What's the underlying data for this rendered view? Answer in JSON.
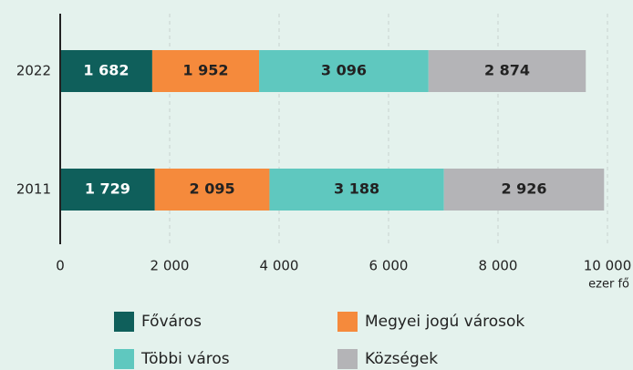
{
  "chart_data": {
    "type": "stacked_barh",
    "categories": [
      "2022",
      "2011"
    ],
    "series": [
      {
        "name": "Főváros",
        "color": "#0f5f5b",
        "values": [
          1682,
          1729
        ],
        "value_labels": [
          "1 682",
          "1 729"
        ]
      },
      {
        "name": "Megyei jogú városok",
        "color": "#f58a3c",
        "values": [
          1952,
          2095
        ],
        "value_labels": [
          "1 952",
          "2 095"
        ]
      },
      {
        "name": "Többi város",
        "color": "#5fc8bf",
        "values": [
          3096,
          3188
        ],
        "value_labels": [
          "3 096",
          "3 188"
        ]
      },
      {
        "name": "Községek",
        "color": "#b4b4b7",
        "values": [
          2874,
          2926
        ],
        "value_labels": [
          "2 874",
          "2 926"
        ]
      }
    ],
    "xlim": [
      0,
      10000
    ],
    "xticks": [
      0,
      {
        "value": 2000,
        "label": "2 000"
      },
      {
        "value": 4000,
        "label": "4 000"
      },
      {
        "value": 6000,
        "label": "6 000"
      },
      {
        "value": 8000,
        "label": "8 000"
      },
      {
        "value": 10000,
        "label": "10 000"
      }
    ],
    "x_label": "ezer fő",
    "grid": true
  }
}
